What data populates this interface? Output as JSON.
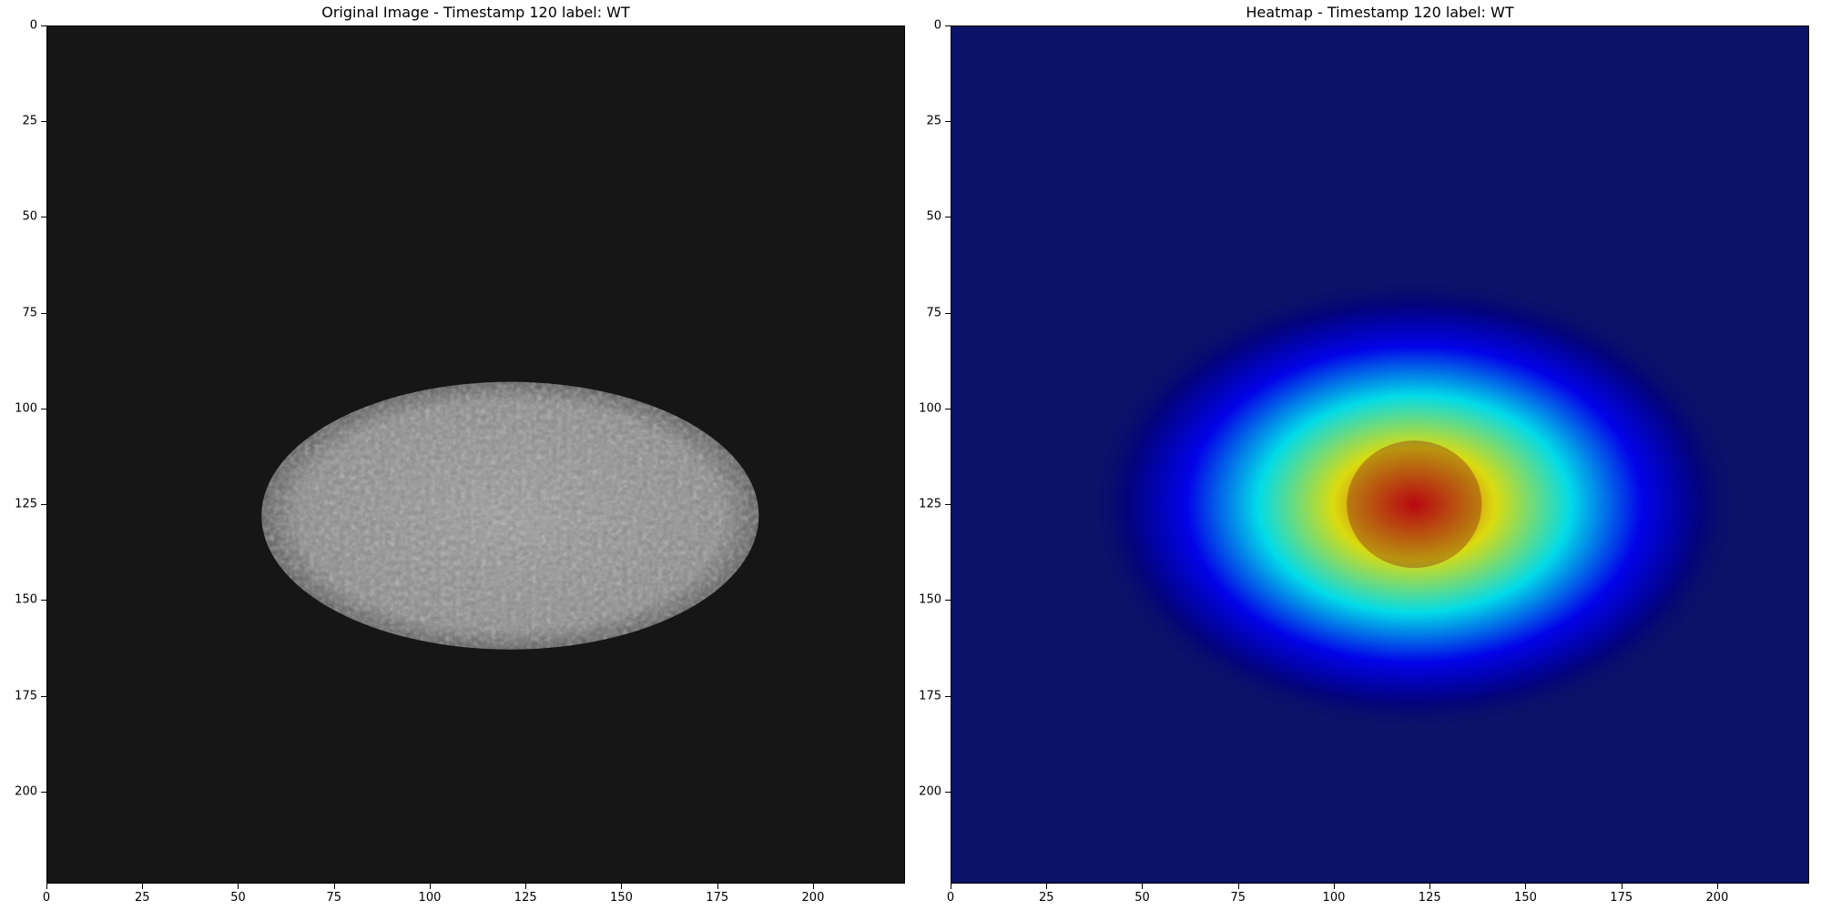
{
  "chart_data": [
    {
      "type": "heatmap",
      "variant": "grayscale-image",
      "title": "Original Image - Timestamp 120 label: WT",
      "xlabel": "",
      "ylabel": "",
      "xlim": [
        0,
        224
      ],
      "ylim": [
        224,
        0
      ],
      "xticks": [
        0,
        25,
        50,
        75,
        100,
        125,
        150,
        175,
        200
      ],
      "yticks": [
        0,
        25,
        50,
        75,
        100,
        125,
        150,
        175,
        200
      ],
      "object": {
        "label": "cell",
        "center_x": 121,
        "center_y": 128,
        "radius_x": 65,
        "radius_y": 35
      },
      "background_color": "#161616",
      "object_color": "#8a8a8a"
    },
    {
      "type": "heatmap",
      "variant": "jet-overlay",
      "title": "Heatmap - Timestamp 120 label: WT",
      "xlabel": "",
      "ylabel": "",
      "xlim": [
        0,
        224
      ],
      "ylim": [
        224,
        0
      ],
      "xticks": [
        0,
        25,
        50,
        75,
        100,
        125,
        150,
        175,
        200
      ],
      "yticks": [
        0,
        25,
        50,
        75,
        100,
        125,
        150,
        175,
        200
      ],
      "hotspot": {
        "center_x": 121,
        "center_y": 125,
        "radius_x": 63,
        "radius_y": 37
      },
      "colormap": [
        "#00007f",
        "#0000ff",
        "#00ffff",
        "#ffff00",
        "#ff0000"
      ],
      "background_color": "#0b1268"
    }
  ]
}
